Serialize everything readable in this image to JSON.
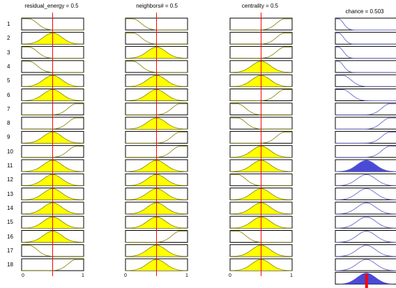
{
  "columns": [
    {
      "label": "residual_energy = 0.5"
    },
    {
      "label": "neighbors# = 0.5"
    },
    {
      "label": "centrality = 0.5"
    },
    {
      "label": "chance = 0.503"
    }
  ],
  "rule_numbers": [
    "1",
    "2",
    "3",
    "4",
    "5",
    "6",
    "7",
    "8",
    "9",
    "10",
    "11",
    "12",
    "13",
    "14",
    "15",
    "16",
    "17",
    "18"
  ],
  "axis_ticks": {
    "min": "0",
    "max": "1"
  },
  "colors": {
    "input_fill": "#ffff00",
    "input_line": "#808000",
    "output_fill": "#4a4ad8",
    "output_line": "#6a6acc",
    "marker": "#ff0000",
    "frame": "#000000"
  },
  "memberships": {
    "residual_energy": [
      "low",
      "mid",
      "low",
      "low",
      "mid",
      "mid",
      "high",
      "high",
      "mid",
      "high",
      "mid",
      "mid",
      "mid",
      "mid",
      "mid",
      "mid",
      "low",
      "high"
    ],
    "neighbors": [
      "low",
      "low",
      "mid",
      "low",
      "mid",
      "mid",
      "high",
      "mid",
      "high",
      "high",
      "mid",
      "mid",
      "mid",
      "mid",
      "mid",
      "high",
      "mid",
      "mid"
    ],
    "centrality": [
      "high",
      "high",
      "high",
      "mid",
      "mid",
      "high",
      "low",
      "low",
      "high",
      "mid",
      "mid",
      "low",
      "mid",
      "mid",
      "mid",
      "low",
      "mid",
      "mid"
    ],
    "chance": [
      "vlow",
      "vlow",
      "vlow",
      "vlow",
      "low",
      "low",
      "high",
      "high",
      "high",
      "high",
      "mid",
      "mid",
      "mid",
      "mid",
      "mid",
      "mid",
      "mid",
      "mid"
    ],
    "active_output_rule": 11,
    "input_value": 0.5,
    "output_value": 0.503
  }
}
